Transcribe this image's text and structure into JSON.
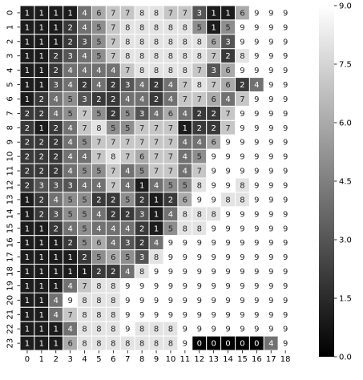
{
  "chart_data": {
    "type": "heatmap",
    "title": "",
    "xlabel": "",
    "ylabel": "",
    "x_labels": [
      "0",
      "1",
      "2",
      "3",
      "4",
      "5",
      "6",
      "7",
      "8",
      "9",
      "10",
      "11",
      "12",
      "13",
      "14",
      "15",
      "16",
      "17",
      "18"
    ],
    "y_labels": [
      "0",
      "1",
      "2",
      "3",
      "4",
      "5",
      "6",
      "7",
      "8",
      "9",
      "10",
      "11",
      "12",
      "13",
      "14",
      "15",
      "16",
      "17",
      "18",
      "19",
      "20",
      "21",
      "22",
      "23"
    ],
    "values": [
      [
        1,
        1,
        1,
        1,
        4,
        6,
        7,
        7,
        8,
        8,
        7,
        7,
        3,
        1,
        1,
        6,
        9,
        9,
        9
      ],
      [
        1,
        1,
        1,
        2,
        4,
        5,
        7,
        8,
        8,
        8,
        8,
        8,
        5,
        1,
        5,
        9,
        9,
        9,
        9
      ],
      [
        1,
        1,
        1,
        2,
        3,
        5,
        7,
        8,
        8,
        8,
        8,
        8,
        8,
        6,
        3,
        9,
        9,
        9,
        9
      ],
      [
        1,
        1,
        2,
        3,
        4,
        5,
        7,
        8,
        8,
        8,
        8,
        8,
        8,
        7,
        2,
        8,
        9,
        9,
        9
      ],
      [
        1,
        1,
        2,
        4,
        4,
        4,
        4,
        7,
        8,
        8,
        8,
        8,
        7,
        3,
        6,
        9,
        9,
        9,
        9
      ],
      [
        1,
        1,
        3,
        4,
        2,
        4,
        2,
        3,
        4,
        2,
        4,
        7,
        8,
        7,
        6,
        2,
        4,
        9,
        9
      ],
      [
        1,
        2,
        4,
        5,
        3,
        2,
        2,
        4,
        4,
        2,
        4,
        7,
        7,
        6,
        4,
        7,
        9,
        9,
        9
      ],
      [
        2,
        2,
        4,
        5,
        7,
        5,
        2,
        5,
        3,
        4,
        6,
        4,
        2,
        2,
        7,
        9,
        9,
        9,
        9
      ],
      [
        2,
        1,
        2,
        4,
        7,
        8,
        5,
        5,
        7,
        7,
        7,
        1,
        2,
        2,
        7,
        9,
        9,
        9,
        9
      ],
      [
        2,
        2,
        2,
        4,
        5,
        7,
        7,
        7,
        7,
        7,
        7,
        4,
        4,
        6,
        9,
        9,
        9,
        9,
        9
      ],
      [
        2,
        2,
        2,
        4,
        4,
        7,
        8,
        7,
        6,
        7,
        7,
        4,
        5,
        9,
        9,
        9,
        9,
        9,
        9
      ],
      [
        2,
        2,
        2,
        4,
        5,
        5,
        7,
        4,
        5,
        7,
        7,
        4,
        7,
        9,
        9,
        9,
        9,
        9,
        9
      ],
      [
        2,
        3,
        3,
        3,
        4,
        4,
        7,
        4,
        1,
        4,
        5,
        5,
        8,
        9,
        9,
        8,
        9,
        9,
        9
      ],
      [
        1,
        2,
        4,
        5,
        5,
        2,
        2,
        5,
        2,
        1,
        2,
        6,
        9,
        9,
        8,
        8,
        9,
        9,
        9
      ],
      [
        1,
        2,
        3,
        5,
        5,
        4,
        2,
        2,
        3,
        1,
        4,
        8,
        8,
        8,
        9,
        9,
        9,
        9,
        9
      ],
      [
        1,
        1,
        2,
        4,
        5,
        4,
        4,
        4,
        2,
        1,
        5,
        8,
        8,
        9,
        9,
        9,
        9,
        9,
        9
      ],
      [
        1,
        1,
        1,
        2,
        5,
        6,
        4,
        3,
        2,
        4,
        9,
        9,
        9,
        9,
        9,
        9,
        9,
        9,
        9
      ],
      [
        1,
        1,
        1,
        1,
        2,
        5,
        6,
        5,
        3,
        8,
        9,
        9,
        9,
        9,
        9,
        9,
        9,
        9,
        9
      ],
      [
        1,
        1,
        1,
        1,
        1,
        2,
        2,
        4,
        8,
        9,
        9,
        9,
        9,
        9,
        9,
        9,
        9,
        9,
        9
      ],
      [
        1,
        1,
        1,
        4,
        7,
        8,
        8,
        9,
        9,
        9,
        9,
        9,
        9,
        9,
        9,
        9,
        9,
        9,
        9
      ],
      [
        1,
        1,
        4,
        9,
        8,
        8,
        8,
        9,
        9,
        9,
        9,
        9,
        9,
        9,
        9,
        9,
        9,
        9,
        9
      ],
      [
        1,
        1,
        4,
        7,
        8,
        8,
        8,
        9,
        9,
        9,
        9,
        9,
        9,
        9,
        9,
        9,
        9,
        9,
        9
      ],
      [
        1,
        1,
        1,
        4,
        8,
        8,
        8,
        9,
        8,
        8,
        8,
        9,
        9,
        9,
        9,
        9,
        9,
        9,
        9
      ],
      [
        1,
        1,
        1,
        6,
        8,
        8,
        8,
        8,
        8,
        8,
        8,
        9,
        0,
        0,
        0,
        0,
        0,
        4,
        9
      ]
    ],
    "vmin": 0,
    "vmax": 9,
    "colormap": [
      "#000000",
      "#ffffff"
    ],
    "colorbar_ticks": [
      "0.0",
      "1.5",
      "3.0",
      "4.5",
      "6.0",
      "7.5",
      "9.0"
    ],
    "grid_line_color": "#ffffff",
    "annotated": true
  }
}
